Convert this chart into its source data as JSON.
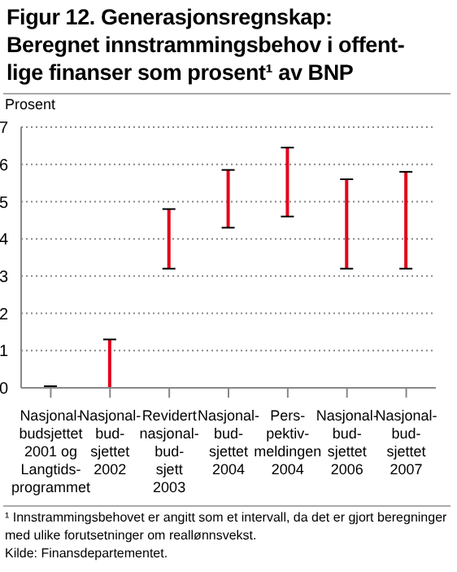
{
  "chart_data": {
    "type": "bar",
    "title": "Figur 12. Generasjonsregnskap:\nBeregnet innstrammingsbehov i offent-\nlige finanser som prosent¹ av BNP",
    "ylabel": "Prosent",
    "categories": [
      "Nasjonal-\nbudsjettet\n2001 og\nLangtids-\nprogrammet",
      "Nasjonal-\nbud-\nsjettet\n2002",
      "Revidert\nnasjonal-\nbud-\nsjett\n2003",
      "Nasjonal-\nbud-\nsjettet\n2004",
      "Pers-\npektiv-\nmeldingen\n2004",
      "Nasjonal-\nbud-\nsjettet\n2006",
      "Nasjonal-\nbud-\nsjettet\n2007"
    ],
    "base": [
      0,
      0,
      3.2,
      4.3,
      4.6,
      3.2,
      3.2
    ],
    "values": [
      0,
      1.3,
      1.6,
      1.55,
      1.85,
      2.4,
      2.6
    ],
    "color": "#e3001b",
    "ylim": [
      0,
      7
    ],
    "yticks": [
      0,
      1,
      2,
      3,
      4,
      5,
      6,
      7
    ],
    "grid": "y",
    "annotations": [
      "¹ Innstrammingsbehovet er angitt som et intervall, da det er gjort beregninger med ulike forutsetninger om reallønnsvekst.",
      "Kilde: Finansdepartementet."
    ]
  }
}
